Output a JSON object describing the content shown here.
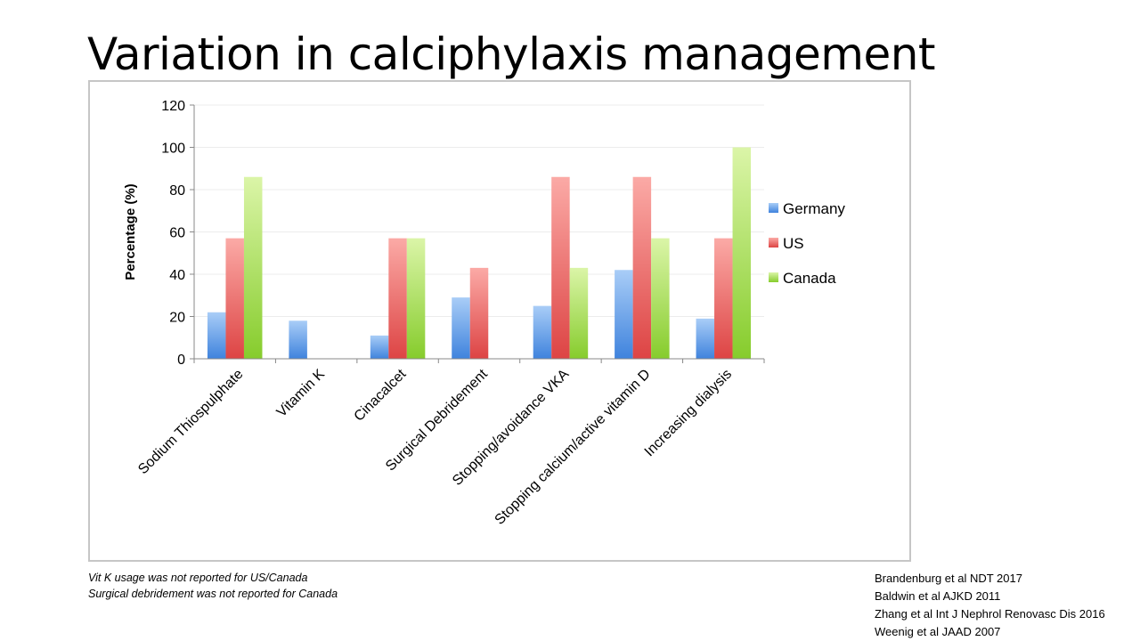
{
  "title": "Variation in calciphylaxis management",
  "notes": [
    "Vit K usage was not reported for US/Canada",
    "Surgical debridement was not reported for Canada"
  ],
  "references": [
    "Brandenburg et al NDT 2017",
    "Baldwin et al AJKD 2011",
    "Zhang et al Int J Nephrol Renovasc Dis 2016",
    "Weenig et al JAAD 2007"
  ],
  "colors": {
    "germany": "#4f8fe0",
    "us": "#e04c4c",
    "canada": "#8fd33a"
  },
  "chart_data": {
    "type": "bar",
    "title": "",
    "xlabel": "",
    "ylabel": "Percentage (%)",
    "ylim": [
      0,
      120
    ],
    "yticks": [
      0,
      20,
      40,
      60,
      80,
      100,
      120
    ],
    "grid": true,
    "legend_position": "right",
    "categories": [
      "Sodium Thiospulphate",
      "Vitamin K",
      "Cinacalcet",
      "Surgical Debridement",
      "Stopping/avoidance VKA",
      "Stopping calcium/active vitamin D",
      "Increasing dialysis"
    ],
    "series": [
      {
        "name": "Germany",
        "color": "#4f8fe0",
        "values": [
          22,
          18,
          11,
          29,
          25,
          42,
          19
        ]
      },
      {
        "name": "US",
        "color": "#e04c4c",
        "values": [
          57,
          null,
          57,
          43,
          86,
          86,
          57
        ]
      },
      {
        "name": "Canada",
        "color": "#8fd33a",
        "values": [
          86,
          null,
          57,
          null,
          43,
          57,
          100
        ]
      }
    ]
  }
}
